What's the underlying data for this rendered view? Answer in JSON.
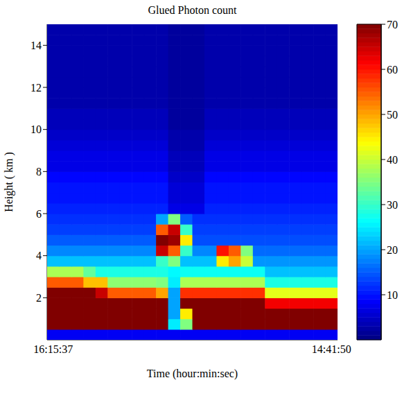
{
  "chart_data": {
    "type": "heatmap",
    "title": "Glued Photon count",
    "x_label": "Time (hour:min:sec)",
    "y_label": "Height ( km )",
    "categories": [
      "16:15:37",
      null,
      null,
      null,
      null,
      null,
      null,
      null,
      null,
      null,
      null,
      null,
      null,
      null,
      null,
      null,
      null,
      null,
      null,
      null,
      null,
      null,
      null,
      "14:41:50"
    ],
    "xlim": [
      -0.5,
      23.5
    ],
    "y": [
      0.25,
      0.75,
      1.25,
      1.75,
      2.25,
      2.75,
      3.25,
      3.75,
      4.25,
      4.75,
      5.25,
      5.75,
      6.25,
      6.75,
      7.25,
      7.75,
      8.25,
      8.75,
      9.25,
      9.75,
      10.25,
      10.75,
      11.25,
      11.75,
      12.25,
      12.75,
      13.25,
      13.75,
      14.25,
      14.75
    ],
    "ylim": [
      0,
      15
    ],
    "yticks": [
      2,
      4,
      6,
      8,
      10,
      12,
      14
    ],
    "cells": [
      [
        8,
        8,
        8,
        8,
        8,
        8,
        8,
        8,
        8,
        8,
        8,
        8,
        8,
        8,
        8,
        8,
        8,
        8,
        8,
        8,
        8,
        8,
        8,
        8
      ],
      [
        70,
        70,
        70,
        70,
        70,
        70,
        70,
        70,
        70,
        70,
        25,
        35,
        70,
        70,
        70,
        70,
        70,
        70,
        70,
        70,
        70,
        70,
        70,
        70
      ],
      [
        70,
        70,
        70,
        70,
        70,
        70,
        70,
        70,
        70,
        70,
        20,
        45,
        70,
        70,
        70,
        70,
        70,
        70,
        70,
        70,
        70,
        70,
        70,
        70
      ],
      [
        70,
        70,
        70,
        70,
        70,
        70,
        70,
        70,
        70,
        70,
        20,
        70,
        70,
        70,
        70,
        70,
        70,
        70,
        62,
        62,
        62,
        62,
        62,
        62
      ],
      [
        70,
        70,
        70,
        70,
        65,
        55,
        55,
        55,
        55,
        50,
        20,
        58,
        58,
        58,
        58,
        58,
        58,
        58,
        42,
        42,
        42,
        42,
        42,
        42
      ],
      [
        55,
        55,
        55,
        48,
        48,
        36,
        36,
        36,
        36,
        35,
        25,
        38,
        38,
        38,
        38,
        38,
        38,
        38,
        28,
        28,
        28,
        28,
        28,
        28
      ],
      [
        38,
        38,
        38,
        33,
        28,
        28,
        28,
        28,
        28,
        28,
        26,
        27,
        27,
        27,
        27,
        27,
        27,
        27,
        22,
        22,
        22,
        22,
        22,
        22
      ],
      [
        22,
        22,
        22,
        22,
        22,
        22,
        22,
        22,
        22,
        30,
        35,
        22,
        22,
        22,
        45,
        50,
        40,
        19,
        19,
        19,
        19,
        19,
        19,
        19
      ],
      [
        18,
        18,
        18,
        18,
        18,
        18,
        18,
        18,
        18,
        65,
        55,
        30,
        18,
        18,
        60,
        55,
        35,
        16,
        16,
        16,
        16,
        16,
        16,
        16
      ],
      [
        15,
        15,
        15,
        15,
        15,
        15,
        15,
        15,
        15,
        70,
        68,
        45,
        14,
        14,
        14,
        14,
        14,
        14,
        14,
        14,
        14,
        14,
        14,
        14
      ],
      [
        13,
        13,
        13,
        13,
        13,
        13,
        13,
        13,
        13,
        55,
        65,
        30,
        13,
        13,
        13,
        13,
        13,
        13,
        13,
        13,
        13,
        13,
        13,
        13
      ],
      [
        12,
        12,
        12,
        12,
        12,
        12,
        12,
        12,
        12,
        20,
        35,
        15,
        12,
        12,
        12,
        12,
        12,
        12,
        12,
        12,
        12,
        12,
        12,
        12
      ],
      [
        11,
        11,
        11,
        11,
        11,
        11,
        11,
        11,
        11,
        11,
        7,
        7,
        7,
        11,
        11,
        11,
        11,
        11,
        11,
        11,
        11,
        11,
        11,
        11
      ],
      [
        10,
        10,
        10,
        10,
        10,
        10,
        10,
        10,
        10,
        10,
        6,
        6,
        6,
        10,
        10,
        10,
        10,
        10,
        10,
        10,
        10,
        10,
        10,
        10
      ],
      [
        10,
        10,
        10,
        10,
        10,
        10,
        10,
        10,
        10,
        10,
        6,
        6,
        6,
        10,
        10,
        10,
        10,
        10,
        10,
        10,
        10,
        10,
        10,
        10
      ],
      [
        9,
        9,
        9,
        9,
        9,
        9,
        9,
        9,
        9,
        9,
        5,
        5,
        5,
        9,
        9,
        9,
        9,
        9,
        9,
        9,
        9,
        9,
        9,
        9
      ],
      [
        7,
        7,
        7,
        7,
        7,
        7,
        7,
        7,
        7,
        7,
        4,
        4,
        4,
        7,
        7,
        7,
        7,
        7,
        7,
        7,
        7,
        7,
        7,
        7
      ],
      [
        7,
        7,
        7,
        7,
        7,
        7,
        7,
        7,
        7,
        7,
        4,
        4,
        4,
        7,
        7,
        7,
        7,
        7,
        7,
        7,
        7,
        7,
        7,
        7
      ],
      [
        6,
        6,
        6,
        6,
        6,
        6,
        6,
        6,
        6,
        6,
        3,
        3,
        3,
        6,
        6,
        6,
        6,
        6,
        6,
        6,
        6,
        6,
        6,
        6
      ],
      [
        5,
        5,
        5,
        5,
        5,
        5,
        5,
        5,
        5,
        5,
        3,
        3,
        3,
        5,
        5,
        5,
        5,
        5,
        5,
        5,
        5,
        5,
        5,
        5
      ],
      [
        4,
        4,
        4,
        4,
        4,
        4,
        4,
        4,
        4,
        4,
        2,
        2,
        2,
        4,
        4,
        4,
        4,
        4,
        4,
        4,
        4,
        4,
        4,
        4
      ],
      [
        4,
        4,
        4,
        4,
        4,
        4,
        4,
        4,
        4,
        4,
        2,
        2,
        2,
        4,
        4,
        4,
        4,
        4,
        4,
        4,
        4,
        4,
        4,
        4
      ],
      [
        3,
        3,
        3,
        3,
        3,
        3,
        3,
        3,
        3,
        3,
        2,
        2,
        2,
        3,
        3,
        3,
        3,
        3,
        3,
        3,
        3,
        3,
        3,
        3
      ],
      [
        3,
        3,
        3,
        3,
        3,
        3,
        3,
        3,
        3,
        3,
        2,
        2,
        2,
        3,
        3,
        3,
        3,
        3,
        3,
        3,
        3,
        3,
        3,
        3
      ],
      [
        3,
        3,
        3,
        3,
        3,
        3,
        3,
        3,
        3,
        3,
        2,
        2,
        2,
        3,
        3,
        3,
        3,
        3,
        3,
        3,
        3,
        3,
        3,
        3
      ],
      [
        3,
        3,
        3,
        3,
        3,
        3,
        3,
        3,
        3,
        3,
        2,
        2,
        2,
        3,
        3,
        3,
        3,
        3,
        3,
        3,
        3,
        3,
        3,
        3
      ],
      [
        3,
        3,
        3,
        3,
        3,
        3,
        3,
        3,
        3,
        3,
        2,
        2,
        2,
        3,
        3,
        3,
        3,
        3,
        3,
        3,
        3,
        3,
        3,
        3
      ],
      [
        3,
        3,
        3,
        3,
        3,
        3,
        3,
        3,
        3,
        3,
        2,
        2,
        2,
        3,
        3,
        3,
        3,
        3,
        3,
        3,
        3,
        3,
        3,
        3
      ],
      [
        3,
        3,
        3,
        3,
        3,
        3,
        3,
        3,
        3,
        3,
        2,
        2,
        2,
        3,
        3,
        3,
        3,
        3,
        3,
        3,
        3,
        3,
        3,
        3
      ],
      [
        3,
        3,
        3,
        3,
        3,
        3,
        3,
        3,
        3,
        3,
        2,
        2,
        2,
        3,
        3,
        3,
        3,
        3,
        3,
        3,
        3,
        3,
        3,
        3
      ]
    ],
    "colorbar": {
      "range": [
        0,
        70
      ],
      "ticks": [
        10,
        20,
        30,
        40,
        50,
        60,
        70
      ]
    }
  }
}
